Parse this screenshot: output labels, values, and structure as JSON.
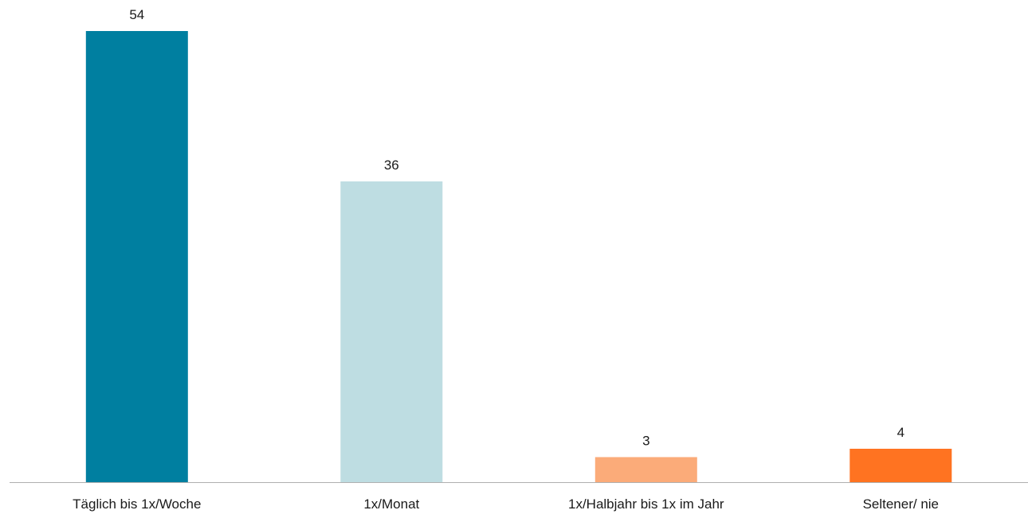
{
  "chart_data": {
    "type": "bar",
    "title": "",
    "xlabel": "",
    "ylabel": "",
    "categories": [
      "Täglich bis 1x/Woche",
      "1x/Monat",
      "1x/Halbjahr bis 1x im Jahr",
      "Seltener/ nie"
    ],
    "values": [
      54,
      36,
      3,
      4
    ],
    "value_labels": [
      "54",
      "36",
      "3",
      "4"
    ],
    "colors": [
      "#007fa0",
      "#bedde2",
      "#fbab79",
      "#ff7321"
    ],
    "ylim": [
      0,
      54
    ],
    "grid": false,
    "legend": "none"
  }
}
